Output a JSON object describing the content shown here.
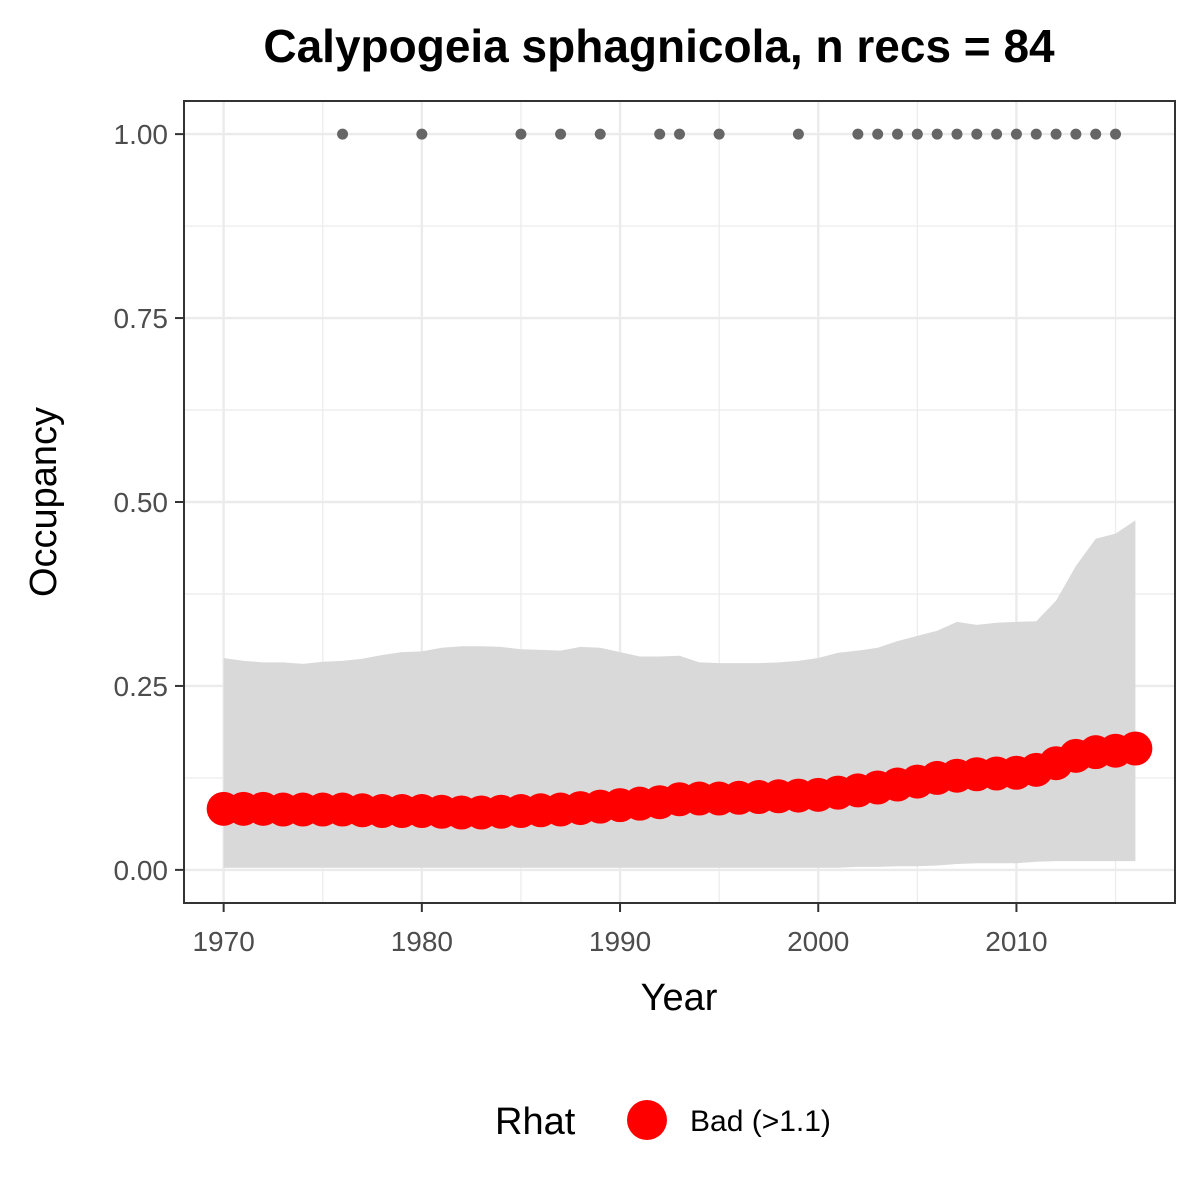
{
  "chart_data": {
    "type": "line",
    "title": "Calypogeia sphagnicola, n recs = 84",
    "xlabel": "Year",
    "ylabel": "Occupancy",
    "xlim": [
      1968,
      2018
    ],
    "ylim": [
      -0.045,
      1.045
    ],
    "x_ticks": [
      1970,
      1980,
      1990,
      2000,
      2010
    ],
    "x_tick_labels": [
      "1970",
      "1980",
      "1990",
      "2000",
      "2010"
    ],
    "x_minor_ticks": [
      1975,
      1985,
      1995,
      2005,
      2015
    ],
    "y_ticks": [
      0,
      0.25,
      0.5,
      0.75,
      1.0
    ],
    "y_tick_labels": [
      "0.00",
      "0.25",
      "0.50",
      "0.75",
      "1.00"
    ],
    "y_minor_ticks": [
      0.125,
      0.375,
      0.625,
      0.875
    ],
    "grid": true,
    "legend_position": "bottom",
    "legend": {
      "title": "Rhat",
      "entries": [
        {
          "label": "Bad (>1.1)",
          "color": "#ff0000"
        }
      ]
    },
    "colors": {
      "occupancy_points": "#ff0000",
      "interval_band": "#d9d9d9",
      "record_points": "#666666"
    },
    "series": [
      {
        "x": [
          1970,
          1971,
          1972,
          1973,
          1974,
          1975,
          1976,
          1977,
          1978,
          1979,
          1980,
          1981,
          1982,
          1983,
          1984,
          1985,
          1986,
          1987,
          1988,
          1989,
          1990,
          1991,
          1992,
          1993,
          1994,
          1995,
          1996,
          1997,
          1998,
          1999,
          2000,
          2001,
          2002,
          2003,
          2004,
          2005,
          2006,
          2007,
          2008,
          2009,
          2010,
          2011,
          2012,
          2013,
          2014,
          2015,
          2016
        ],
        "y": [
          0.083,
          0.083,
          0.083,
          0.082,
          0.082,
          0.082,
          0.082,
          0.081,
          0.08,
          0.08,
          0.08,
          0.079,
          0.078,
          0.078,
          0.079,
          0.08,
          0.081,
          0.082,
          0.084,
          0.086,
          0.088,
          0.09,
          0.092,
          0.096,
          0.097,
          0.097,
          0.098,
          0.099,
          0.1,
          0.101,
          0.102,
          0.105,
          0.108,
          0.112,
          0.116,
          0.12,
          0.125,
          0.128,
          0.13,
          0.131,
          0.132,
          0.136,
          0.145,
          0.155,
          0.16,
          0.162,
          0.165
        ],
        "lower": [
          0.003,
          0.003,
          0.003,
          0.003,
          0.003,
          0.003,
          0.003,
          0.003,
          0.003,
          0.003,
          0.003,
          0.003,
          0.003,
          0.003,
          0.003,
          0.003,
          0.003,
          0.003,
          0.003,
          0.003,
          0.003,
          0.003,
          0.003,
          0.003,
          0.003,
          0.003,
          0.003,
          0.003,
          0.003,
          0.003,
          0.003,
          0.003,
          0.004,
          0.004,
          0.005,
          0.005,
          0.006,
          0.008,
          0.009,
          0.009,
          0.009,
          0.011,
          0.012,
          0.012,
          0.012,
          0.012,
          0.012
        ],
        "upper": [
          0.288,
          0.284,
          0.282,
          0.282,
          0.28,
          0.283,
          0.284,
          0.287,
          0.292,
          0.296,
          0.297,
          0.302,
          0.304,
          0.304,
          0.303,
          0.3,
          0.299,
          0.298,
          0.303,
          0.302,
          0.296,
          0.29,
          0.29,
          0.291,
          0.282,
          0.281,
          0.281,
          0.281,
          0.282,
          0.284,
          0.288,
          0.295,
          0.298,
          0.302,
          0.311,
          0.318,
          0.325,
          0.337,
          0.333,
          0.336,
          0.337,
          0.338,
          0.366,
          0.413,
          0.45,
          0.457,
          0.475
        ]
      }
    ],
    "records": {
      "x": [
        1976,
        1980,
        1985,
        1987,
        1989,
        1992,
        1993,
        1995,
        1999,
        2002,
        2003,
        2004,
        2005,
        2006,
        2007,
        2008,
        2009,
        2010,
        2011,
        2012,
        2013,
        2014,
        2015
      ],
      "y": 1.0
    }
  }
}
